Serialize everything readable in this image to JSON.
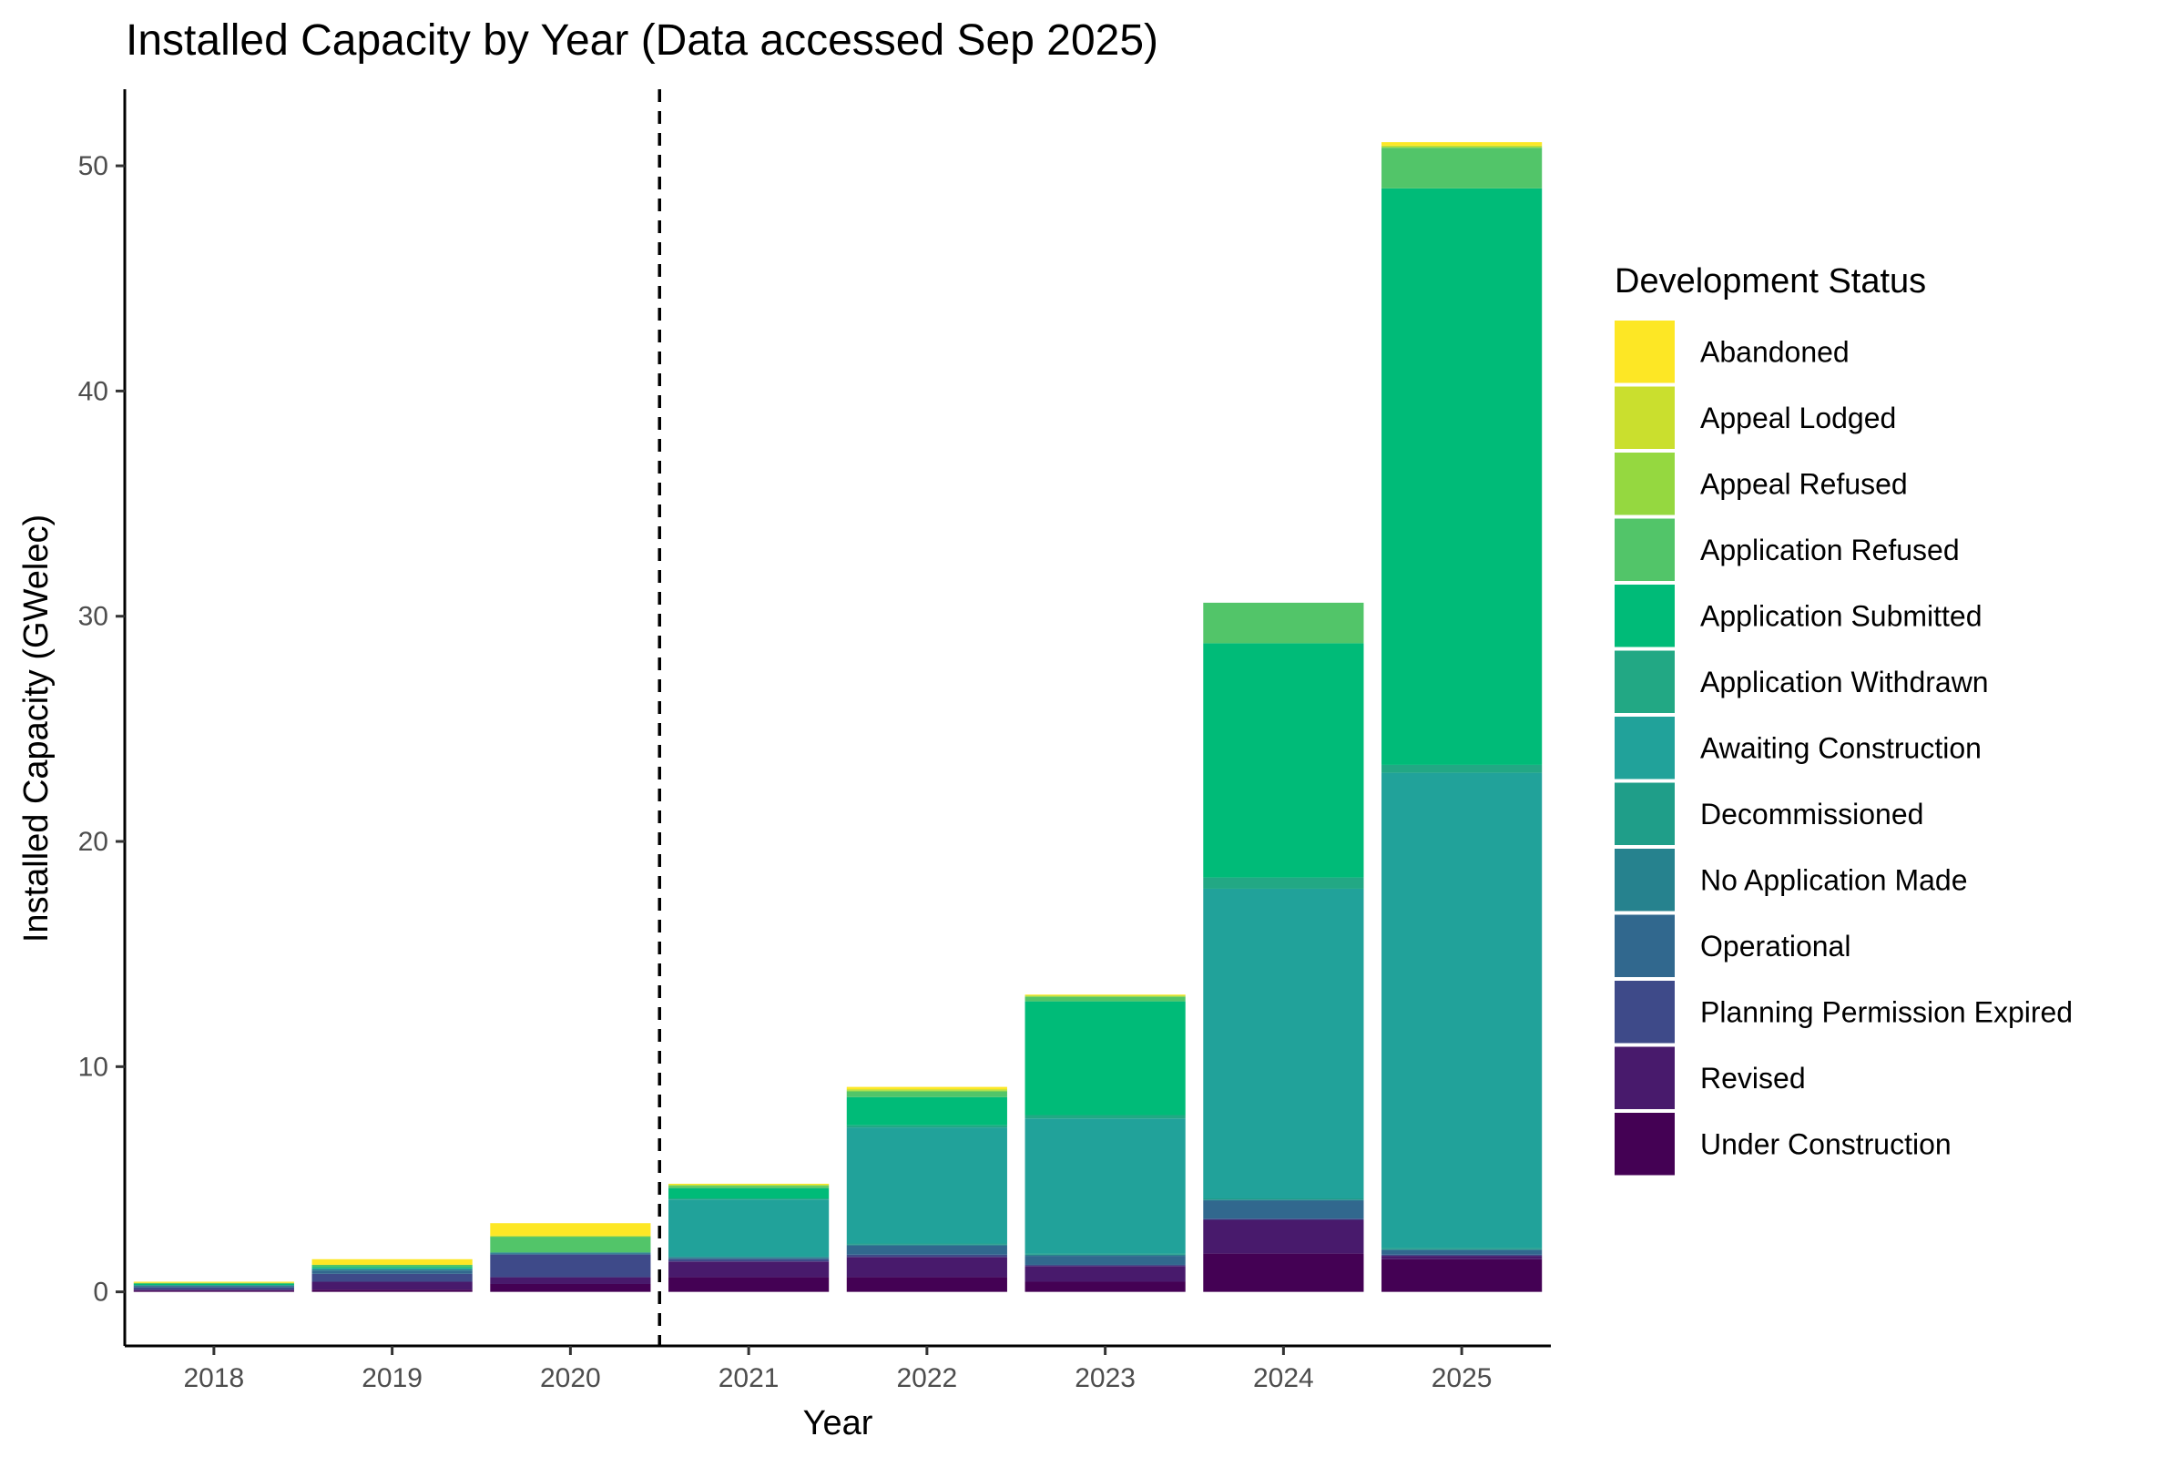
{
  "chart_data": {
    "type": "bar",
    "stacked": true,
    "title": "Installed Capacity by Year (Data accessed Sep 2025)",
    "xlabel": "Year",
    "ylabel": "Installed Capacity (GWelec)",
    "ylim": [
      -2.4,
      53.4
    ],
    "yticks": [
      0,
      10,
      20,
      30,
      40,
      50
    ],
    "grid": false,
    "legend_position": "right",
    "legend_title": "Development Status",
    "reference_line": {
      "between": [
        "2020",
        "2021"
      ],
      "style": "dashed"
    },
    "categories": [
      "2018",
      "2019",
      "2020",
      "2021",
      "2022",
      "2023",
      "2024",
      "2025"
    ],
    "series": [
      {
        "name": "Under Construction",
        "color": "#440154",
        "values": [
          0.05,
          0.1,
          0.35,
          0.65,
          0.65,
          0.45,
          1.7,
          1.45
        ]
      },
      {
        "name": "Revised",
        "color": "#481A6C",
        "values": [
          0.05,
          0.35,
          0.3,
          0.7,
          0.9,
          0.7,
          1.5,
          0.15
        ]
      },
      {
        "name": "Planning Permission Expired",
        "color": "#3E4A89",
        "values": [
          0.1,
          0.35,
          1.0,
          0.1,
          0.1,
          0.05,
          0.05,
          0.05
        ]
      },
      {
        "name": "Operational",
        "color": "#31688E",
        "values": [
          0.05,
          0.15,
          0.05,
          0.05,
          0.4,
          0.4,
          0.8,
          0.2
        ]
      },
      {
        "name": "No Application Made",
        "color": "#26828E",
        "values": [
          0.05,
          0.05,
          0.05,
          0.05,
          0.05,
          0.05,
          0.05,
          0.05
        ]
      },
      {
        "name": "Decommissioned",
        "color": "#1F9E89",
        "values": [
          0.0,
          0.0,
          0.0,
          0.0,
          0.05,
          0.05,
          0.05,
          0.05
        ]
      },
      {
        "name": "Awaiting Construction",
        "color": "#21A29A",
        "values": [
          0.0,
          0.05,
          0.0,
          2.55,
          5.15,
          6.0,
          13.75,
          21.1
        ]
      },
      {
        "name": "Application Withdrawn",
        "color": "#22A884",
        "values": [
          0.0,
          0.0,
          0.0,
          0.05,
          0.1,
          0.15,
          0.5,
          0.35
        ]
      },
      {
        "name": "Application Submitted",
        "color": "#00BB78",
        "values": [
          0.05,
          0.05,
          0.0,
          0.45,
          1.25,
          5.05,
          10.4,
          25.6
        ]
      },
      {
        "name": "Application Refused",
        "color": "#52C569",
        "values": [
          0.05,
          0.1,
          0.7,
          0.1,
          0.25,
          0.2,
          1.8,
          1.8
        ]
      },
      {
        "name": "Appeal Refused",
        "color": "#95D840",
        "values": [
          0.0,
          0.0,
          0.0,
          0.05,
          0.05,
          0.05,
          0.0,
          0.05
        ]
      },
      {
        "name": "Appeal Lodged",
        "color": "#CADF2E",
        "values": [
          0.0,
          0.0,
          0.05,
          0.0,
          0.05,
          0.0,
          0.0,
          0.05
        ]
      },
      {
        "name": "Abandoned",
        "color": "#FDE725",
        "values": [
          0.05,
          0.25,
          0.55,
          0.05,
          0.1,
          0.05,
          0.0,
          0.15
        ]
      }
    ],
    "legend_order": [
      "Abandoned",
      "Appeal Lodged",
      "Appeal Refused",
      "Application Refused",
      "Application Submitted",
      "Application Withdrawn",
      "Awaiting Construction",
      "Decommissioned",
      "No Application Made",
      "Operational",
      "Planning Permission Expired",
      "Revised",
      "Under Construction"
    ]
  }
}
